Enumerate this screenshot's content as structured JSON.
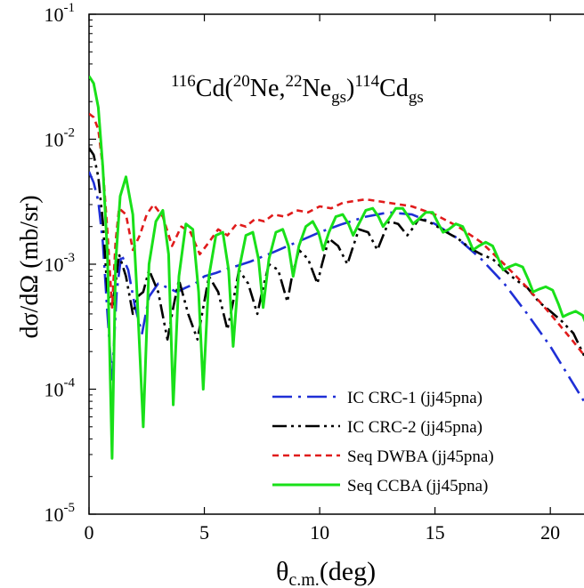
{
  "chart_data": {
    "type": "line",
    "title_parts": {
      "pre1": "116",
      "t1": "Cd(",
      "pre2": "20",
      "t2": "Ne,",
      "pre3": "22",
      "t3": "Ne",
      "sub1": "gs",
      "t4": ")",
      "pre4": "114",
      "t5": "Cd",
      "sub2": "gs"
    },
    "xlabel_main": "θ",
    "xlabel_sub": "c.m.",
    "xlabel_rest": "(deg)",
    "ylabel": "dσ/dΩ (mb/sr)",
    "xlim": [
      0,
      22
    ],
    "ylim": [
      1e-05,
      0.1
    ],
    "yscale": "log",
    "x_ticks": [
      0,
      5,
      10,
      15,
      20
    ],
    "y_ticks": [
      {
        "value": 1e-05,
        "base": "10",
        "exp": "-5"
      },
      {
        "value": 0.0001,
        "base": "10",
        "exp": "-4"
      },
      {
        "value": 0.001,
        "base": "10",
        "exp": "-3"
      },
      {
        "value": 0.01,
        "base": "10",
        "exp": "-2"
      },
      {
        "value": 0.1,
        "base": "10",
        "exp": "-1"
      }
    ],
    "legend_position": "bottom-right",
    "series": [
      {
        "name": "IC CRC-1 (jj45pna)",
        "color": "#1f2fd6",
        "dash": "dash-dot",
        "x": [
          0,
          0.2,
          0.4,
          0.6,
          0.8,
          1.0,
          1.2,
          1.4,
          1.7,
          2.0,
          2.3,
          2.6,
          3.0,
          3.4,
          3.8,
          4.2,
          4.6,
          5.0,
          5.5,
          6.0,
          6.5,
          7.0,
          8.0,
          9.0,
          10.0,
          11.0,
          12.0,
          13.0,
          14.0,
          15.0,
          16.0,
          17.0,
          18.0,
          19.0,
          20.0,
          21.0,
          22.0
        ],
        "y": [
          0.0055,
          0.0045,
          0.0032,
          0.0015,
          0.0004,
          0.00012,
          0.0006,
          0.0012,
          0.0009,
          0.00045,
          0.00028,
          0.00055,
          0.0007,
          0.00065,
          0.0006,
          0.00065,
          0.0007,
          0.0008,
          0.00085,
          0.00092,
          0.00098,
          0.00105,
          0.00125,
          0.0015,
          0.0018,
          0.0021,
          0.0024,
          0.0026,
          0.0025,
          0.0021,
          0.0016,
          0.0011,
          0.0007,
          0.0004,
          0.00022,
          0.00011,
          5.5e-05
        ]
      },
      {
        "name": "IC CRC-2 (jj45pna)",
        "color": "#000000",
        "dash": "dash-dot-dot",
        "x": [
          0,
          0.2,
          0.4,
          0.6,
          0.8,
          1.0,
          1.15,
          1.3,
          1.6,
          1.9,
          2.1,
          2.35,
          2.6,
          3.0,
          3.4,
          3.65,
          3.9,
          4.3,
          4.7,
          4.95,
          5.2,
          5.6,
          6.0,
          6.25,
          6.5,
          6.9,
          7.3,
          7.5,
          7.8,
          8.2,
          8.6,
          8.8,
          9.1,
          9.5,
          9.9,
          10.1,
          10.4,
          10.8,
          11.2,
          11.4,
          11.7,
          12.1,
          12.5,
          12.7,
          13.0,
          13.4,
          13.8,
          14.0,
          14.3,
          14.7,
          15.1,
          15.5,
          16.0,
          16.5,
          17.0,
          17.5,
          18.0,
          18.5,
          19.0,
          19.5,
          20.0,
          20.5,
          21.0,
          21.5,
          22.0
        ],
        "y": [
          0.0085,
          0.0075,
          0.005,
          0.0022,
          0.0006,
          0.00045,
          0.0007,
          0.0012,
          0.0008,
          0.0004,
          0.00055,
          0.0006,
          0.0009,
          0.0006,
          0.00025,
          0.00045,
          0.00075,
          0.0004,
          0.00025,
          0.00045,
          0.0008,
          0.0006,
          0.0003,
          0.0005,
          0.0009,
          0.0007,
          0.0004,
          0.0006,
          0.001,
          0.0009,
          0.0005,
          0.0008,
          0.0013,
          0.0011,
          0.0007,
          0.001,
          0.0016,
          0.0014,
          0.001,
          0.0013,
          0.0019,
          0.0018,
          0.0013,
          0.0016,
          0.0022,
          0.0021,
          0.0017,
          0.0019,
          0.0023,
          0.0022,
          0.002,
          0.0018,
          0.0016,
          0.00135,
          0.0012,
          0.0011,
          0.0009,
          0.00075,
          0.00065,
          0.0005,
          0.00042,
          0.00035,
          0.00028,
          0.00018,
          0.00012
        ]
      },
      {
        "name": "Seq DWBA (jj45pna)",
        "color": "#e01b1b",
        "dash": "short-dash",
        "x": [
          0,
          0.2,
          0.4,
          0.6,
          0.8,
          1.0,
          1.15,
          1.3,
          1.6,
          1.9,
          2.2,
          2.5,
          2.8,
          3.2,
          3.6,
          4.0,
          4.4,
          4.8,
          5.2,
          5.6,
          6.0,
          6.4,
          6.8,
          7.2,
          7.6,
          8.0,
          8.5,
          9.0,
          9.5,
          10.0,
          10.5,
          11.0,
          11.5,
          12.0,
          12.5,
          13.0,
          14.0,
          15.0,
          16.0,
          17.0,
          18.0,
          19.0,
          20.0,
          21.0,
          22.0
        ],
        "y": [
          0.016,
          0.015,
          0.012,
          0.006,
          0.0018,
          0.00045,
          0.0015,
          0.0028,
          0.0025,
          0.0013,
          0.0017,
          0.0025,
          0.003,
          0.0024,
          0.0014,
          0.002,
          0.0018,
          0.0012,
          0.0015,
          0.0019,
          0.0017,
          0.0021,
          0.002,
          0.0023,
          0.0022,
          0.0025,
          0.0024,
          0.0027,
          0.0026,
          0.0029,
          0.0028,
          0.0031,
          0.0032,
          0.0033,
          0.0032,
          0.0031,
          0.0029,
          0.0025,
          0.002,
          0.0015,
          0.001,
          0.00065,
          0.0004,
          0.00024,
          0.00014
        ]
      },
      {
        "name": "Seq CCBA (jj45pna)",
        "color": "#19e019",
        "dash": "solid",
        "x": [
          0,
          0.2,
          0.4,
          0.6,
          0.8,
          1.0,
          1.15,
          1.35,
          1.6,
          1.9,
          2.1,
          2.35,
          2.6,
          2.9,
          3.2,
          3.45,
          3.65,
          3.9,
          4.2,
          4.5,
          4.75,
          4.95,
          5.2,
          5.5,
          5.8,
          6.05,
          6.25,
          6.5,
          6.8,
          7.1,
          7.35,
          7.55,
          7.8,
          8.1,
          8.4,
          8.65,
          8.85,
          9.1,
          9.4,
          9.7,
          9.95,
          10.15,
          10.4,
          10.7,
          11.0,
          11.25,
          11.45,
          11.7,
          12.0,
          12.3,
          12.55,
          12.75,
          13.0,
          13.3,
          13.6,
          13.85,
          14.05,
          14.3,
          14.6,
          14.9,
          15.15,
          15.35,
          15.6,
          15.9,
          16.2,
          16.45,
          16.65,
          16.9,
          17.2,
          17.5,
          17.75,
          17.95,
          18.2,
          18.5,
          18.8,
          19.05,
          19.25,
          19.5,
          19.8,
          20.1,
          20.35,
          20.55,
          20.8,
          21.1,
          21.4,
          21.65,
          21.85,
          22.0
        ],
        "y": [
          0.032,
          0.028,
          0.018,
          0.006,
          0.0012,
          2.8e-05,
          0.001,
          0.0035,
          0.005,
          0.0025,
          0.0005,
          5e-05,
          0.001,
          0.0022,
          0.0027,
          0.0012,
          7.5e-05,
          0.0008,
          0.0021,
          0.0019,
          0.0006,
          0.0001,
          0.0008,
          0.0017,
          0.0018,
          0.0009,
          0.00022,
          0.0009,
          0.0017,
          0.0018,
          0.0011,
          0.00045,
          0.0011,
          0.0018,
          0.0019,
          0.0014,
          0.0008,
          0.0014,
          0.002,
          0.0022,
          0.0018,
          0.0013,
          0.0018,
          0.0024,
          0.0025,
          0.0021,
          0.0017,
          0.0021,
          0.0027,
          0.0028,
          0.0024,
          0.002,
          0.0023,
          0.0028,
          0.0028,
          0.0024,
          0.0021,
          0.0023,
          0.0026,
          0.0026,
          0.0021,
          0.0018,
          0.0019,
          0.0021,
          0.002,
          0.0016,
          0.0013,
          0.0014,
          0.0015,
          0.0014,
          0.0011,
          0.0009,
          0.00095,
          0.001,
          0.00095,
          0.00075,
          0.0006,
          0.00063,
          0.00066,
          0.00062,
          0.00048,
          0.00038,
          0.0004,
          0.00042,
          0.00039,
          0.0003,
          0.00024,
          0.0002
        ]
      }
    ]
  }
}
